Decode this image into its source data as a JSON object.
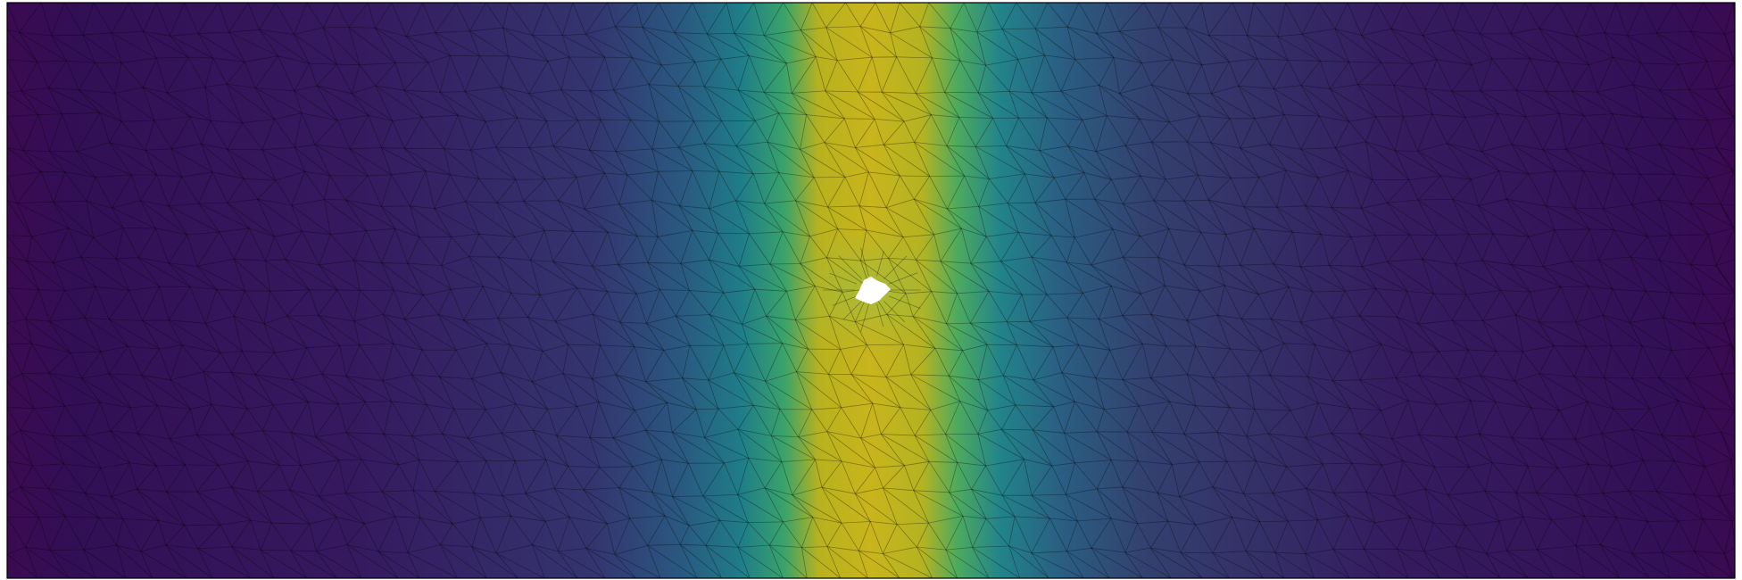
{
  "figure": {
    "kind": "finite-element-mesh-field",
    "colormap": "viridis",
    "colormap_stops": [
      "#440154",
      "#3b528b",
      "#21918c",
      "#5ec962",
      "#bddf26",
      "#c9b720"
    ],
    "field_profile": {
      "description_free": true,
      "peak_band": "vertical-center",
      "values_min": 0,
      "values_max": 1
    },
    "mesh": {
      "element_type": "triangle",
      "edge_color": "#000000",
      "edge_opacity": 0.35
    },
    "hole": {
      "color": "#ffffff"
    },
    "frame": {
      "border_color": "#000000"
    }
  }
}
